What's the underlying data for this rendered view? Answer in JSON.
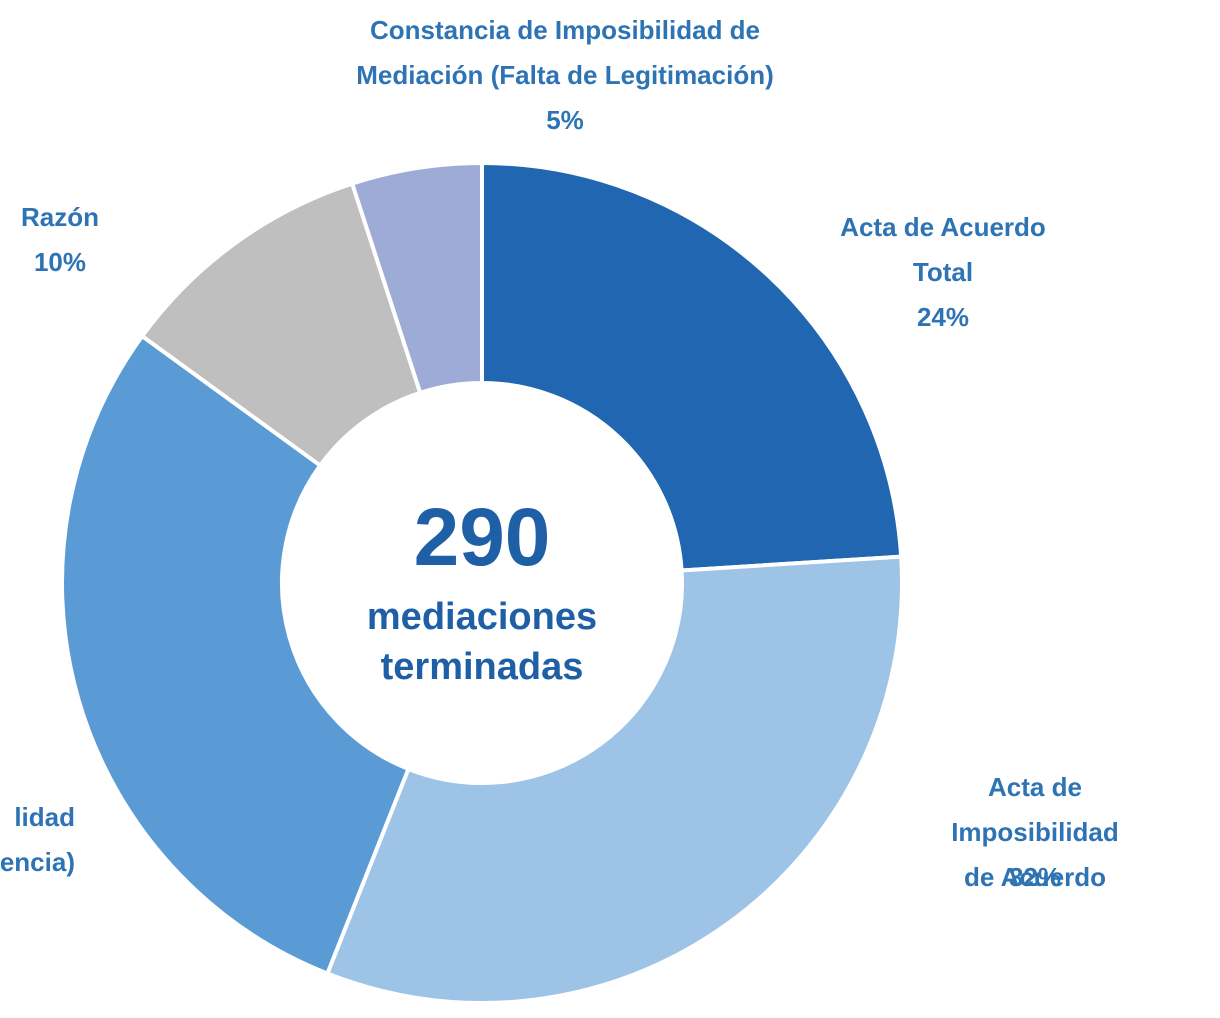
{
  "chart_data": {
    "type": "donut",
    "categories": [
      "Acta de Acuerdo\nTotal",
      "Acta de Imposibilidad\nde Acuerdo",
      "lidad\nencia)",
      "Razón",
      "Constancia de Imposibilidad de\nMediación (Falta de Legitimación)"
    ],
    "values": [
      24,
      32,
      29,
      10,
      5
    ],
    "value_labels": [
      "24%",
      "32%",
      null,
      "10%",
      "5%"
    ],
    "colors": [
      "#2166b1",
      "#9dc3e6",
      "#5b9bd5",
      "#bfbfbf",
      "#9dabd6"
    ],
    "center_value": 290,
    "center_label": "mediaciones\nterminadas"
  }
}
